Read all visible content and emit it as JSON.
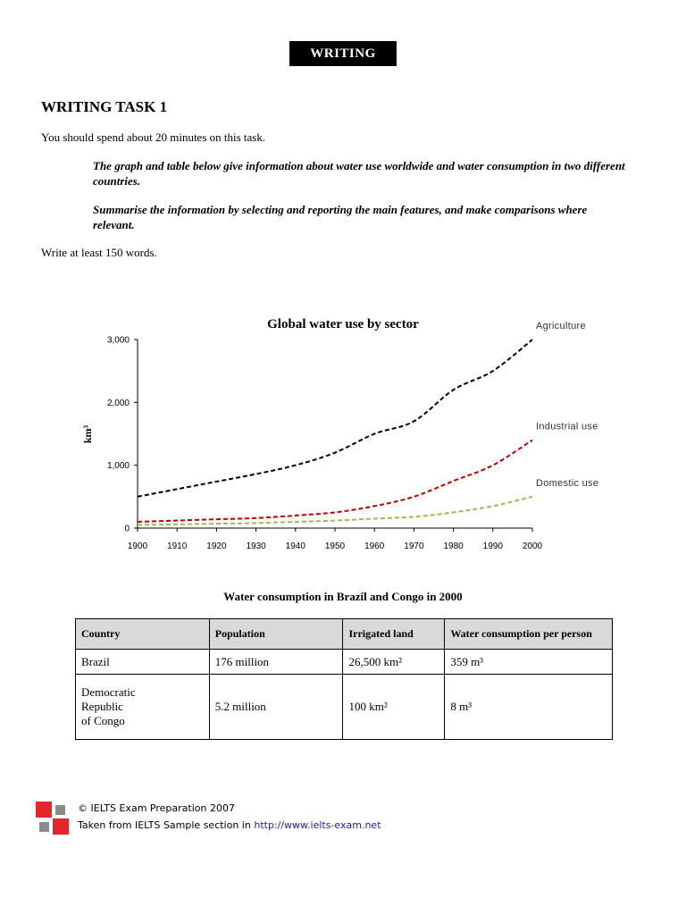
{
  "header": {
    "label": "WRITING"
  },
  "task": {
    "title": "WRITING TASK 1",
    "instruction": "You should spend about 20 minutes on this task.",
    "prompt_1": "The graph and table below give information about water use worldwide and water consumption in two different countries.",
    "prompt_2": "Summarise the information by selecting and reporting the main features, and make comparisons where relevant.",
    "word_count": "Write at least 150 words."
  },
  "chart_data": {
    "type": "line",
    "title": "Global water use by sector",
    "ylabel": "km³",
    "xlabel": "",
    "x": [
      1900,
      1910,
      1920,
      1930,
      1940,
      1950,
      1960,
      1970,
      1980,
      1990,
      2000
    ],
    "x_tick_labels": [
      "1900",
      "1910",
      "1920",
      "1930",
      "1940",
      "1950",
      "1960",
      "1970",
      "1980",
      "1990",
      "2000"
    ],
    "y_tick_values": [
      0,
      1000,
      2000,
      3000
    ],
    "y_tick_labels": [
      "0",
      "1,000",
      "2,000",
      "3,000"
    ],
    "ylim": [
      0,
      3000
    ],
    "xlim": [
      1900,
      2000
    ],
    "grid": false,
    "legend": "inline labels at line ends",
    "series": [
      {
        "name": "Agriculture",
        "color": "#000000",
        "values": [
          500,
          620,
          740,
          860,
          1000,
          1200,
          1500,
          1700,
          2200,
          2500,
          3000
        ]
      },
      {
        "name": "Industrial use",
        "color": "#c00000",
        "values": [
          100,
          120,
          140,
          160,
          200,
          250,
          350,
          500,
          750,
          1000,
          1400
        ]
      },
      {
        "name": "Domestic use",
        "color": "#9bbb59",
        "values": [
          50,
          60,
          70,
          80,
          100,
          120,
          150,
          180,
          250,
          350,
          500
        ]
      }
    ]
  },
  "table": {
    "title": "Water consumption in Brazil and Congo in 2000",
    "headers": [
      "Country",
      "Population",
      "Irrigated land",
      "Water consumption per person"
    ],
    "rows": [
      {
        "country": "Brazil",
        "population": "176 million",
        "irrigated": "26,500 km²",
        "consumption": "359 m³"
      },
      {
        "country_l1": "Democratic",
        "country_l2": "Republic",
        "country_l3": "of Congo",
        "population": "5.2 million",
        "irrigated": "100 km²",
        "consumption": "8 m³"
      }
    ]
  },
  "footer": {
    "copyright": "© IELTS Exam Preparation 2007",
    "source_prefix": "Taken from IELTS Sample section in ",
    "source_link": "http://www.ielts-exam.net"
  }
}
